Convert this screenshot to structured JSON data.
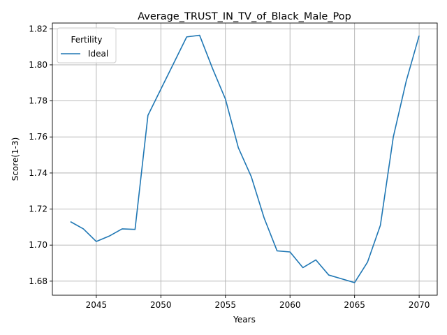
{
  "chart_data": {
    "type": "line",
    "title": "Average_TRUST_IN_TV_of_Black_Male_Pop",
    "xlabel": "Years",
    "ylabel": "Score(1-3)",
    "xlim": [
      2041.6,
      2071.4
    ],
    "ylim": [
      1.6722,
      1.8232
    ],
    "xticks": [
      2045,
      2050,
      2055,
      2060,
      2065,
      2070
    ],
    "yticks": [
      1.68,
      1.7,
      1.72,
      1.74,
      1.76,
      1.78,
      1.8,
      1.82
    ],
    "ytick_labels": [
      "1.68",
      "1.70",
      "1.72",
      "1.74",
      "1.76",
      "1.78",
      "1.80",
      "1.82"
    ],
    "grid": true,
    "legend": {
      "title": "Fertility",
      "position": "upper-left"
    },
    "series": [
      {
        "name": "Ideal",
        "color": "#1f77b4",
        "x": [
          2043,
          2044,
          2045,
          2046,
          2047,
          2048,
          2049,
          2050,
          2051,
          2052,
          2053,
          2054,
          2055,
          2056,
          2057,
          2058,
          2059,
          2060,
          2061,
          2062,
          2063,
          2064,
          2065,
          2066,
          2067,
          2068,
          2069,
          2070
        ],
        "y": [
          1.713,
          1.709,
          1.702,
          1.705,
          1.709,
          1.7087,
          1.772,
          1.7865,
          1.801,
          1.8155,
          1.8164,
          1.798,
          1.781,
          1.754,
          1.738,
          1.715,
          1.6968,
          1.6962,
          1.6875,
          1.6918,
          1.6834,
          1.6813,
          1.6792,
          1.6905,
          1.711,
          1.76,
          1.791,
          1.8162
        ]
      }
    ]
  }
}
